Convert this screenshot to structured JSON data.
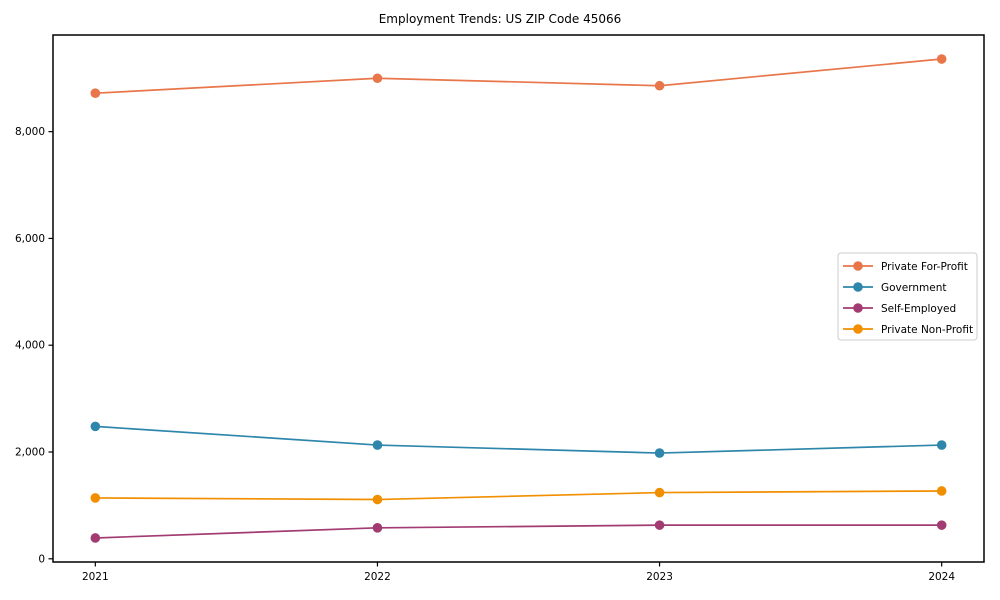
{
  "chart_data": {
    "type": "line",
    "title": "Employment Trends: US ZIP Code 45066",
    "xlabel": "",
    "ylabel": "",
    "categories": [
      "2021",
      "2022",
      "2023",
      "2024"
    ],
    "x": [
      2021,
      2022,
      2023,
      2024
    ],
    "series": [
      {
        "name": "Private For-Profit",
        "color": "#e8764a",
        "values": [
          8720,
          9000,
          8860,
          9360
        ]
      },
      {
        "name": "Government",
        "color": "#2e86ab",
        "values": [
          2480,
          2130,
          1980,
          2130
        ]
      },
      {
        "name": "Self-Employed",
        "color": "#a23b72",
        "values": [
          390,
          580,
          630,
          630
        ]
      },
      {
        "name": "Private Non-Profit",
        "color": "#f18f01",
        "values": [
          1140,
          1110,
          1240,
          1270
        ]
      }
    ],
    "yticks": [
      0,
      2000,
      4000,
      6000,
      8000
    ],
    "ytick_labels": [
      "0",
      "2,000",
      "4,000",
      "6,000",
      "8,000"
    ],
    "ylim": [
      -60,
      9810
    ],
    "xlim": [
      2020.85,
      2024.15
    ],
    "grid": false,
    "legend_position": "center-right",
    "marker": "circle",
    "axis_color": "#000000",
    "tick_label_color": "#000000",
    "legend_border_color": "#cccccc",
    "background_color": "#ffffff"
  }
}
